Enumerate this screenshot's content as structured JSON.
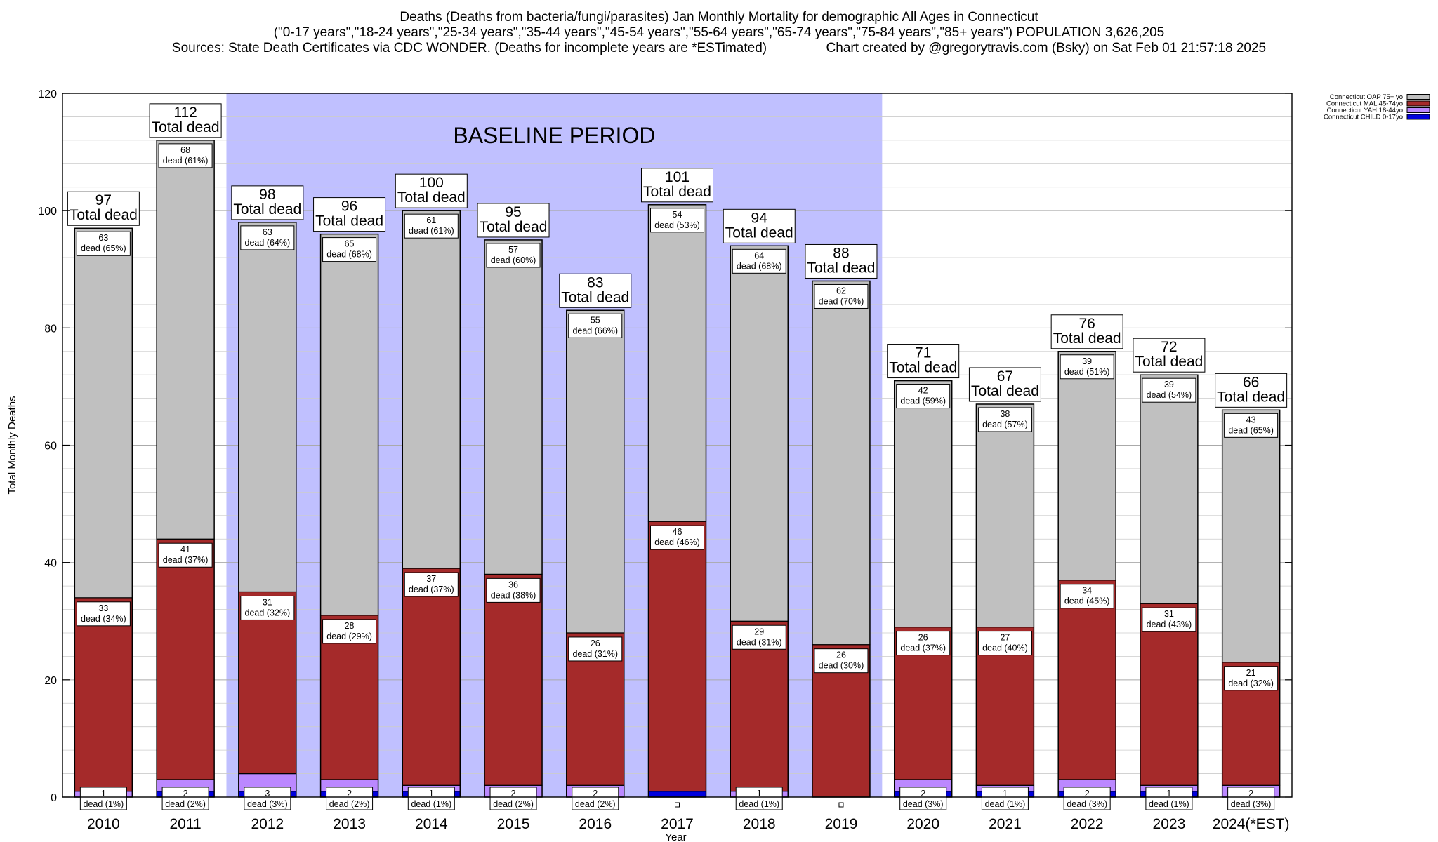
{
  "header": {
    "title_line1": "Deaths (Deaths from bacteria/fungi/parasites) Jan Monthly Mortality for demographic All Ages in Connecticut",
    "title_line2": "(\"0-17 years\",\"18-24 years\",\"25-34 years\",\"35-44 years\",\"45-54 years\",\"55-64 years\",\"65-74 years\",\"75-84 years\",\"85+ years\") POPULATION 3,626,205",
    "title_line3": "Sources: State Death Certificates via CDC WONDER. (Deaths for incomplete years are *ESTimated)                Chart created by @gregorytravis.com (Bsky) on Sat Feb 01 21:57:18 2025"
  },
  "chart_data": {
    "type": "bar",
    "stacked": true,
    "xlabel": "Year",
    "ylabel": "Total Monthly Deaths",
    "ylim": [
      0,
      120
    ],
    "yticks": [
      0,
      20,
      40,
      60,
      80,
      100,
      120
    ],
    "grid": true,
    "legend_position": "top-right",
    "categories": [
      "2010",
      "2011",
      "2012",
      "2013",
      "2014",
      "2015",
      "2016",
      "2017",
      "2018",
      "2019",
      "2020",
      "2021",
      "2022",
      "2023",
      "2024(*EST)"
    ],
    "series": [
      {
        "name": "Connecticut CHILD 0-17yo",
        "color": "#0000dd",
        "values": [
          0,
          1,
          1,
          1,
          1,
          0,
          0,
          1,
          0,
          0,
          1,
          1,
          1,
          1,
          0
        ],
        "labels": [
          "",
          "",
          "",
          "",
          "",
          "",
          "",
          "",
          "",
          "",
          "",
          "",
          "",
          "",
          ""
        ]
      },
      {
        "name": "Connecticut YAH 18-44yo",
        "color": "#bb88ff",
        "values": [
          1,
          2,
          3,
          2,
          1,
          2,
          2,
          0,
          1,
          0,
          2,
          1,
          2,
          1,
          2
        ],
        "labels": [
          "1\ndead (1%)",
          "2\ndead (2%)",
          "3\ndead (3%)",
          "2\ndead (2%)",
          "1\ndead (1%)",
          "2\ndead (2%)",
          "2\ndead (2%)",
          "",
          "1\ndead (1%)",
          "",
          "2\ndead (3%)",
          "1\ndead (1%)",
          "2\ndead (3%)",
          "1\ndead (1%)",
          "2\ndead (3%)"
        ]
      },
      {
        "name": "Connecticut MAL 45-74yo",
        "color": "#a52a2a",
        "values": [
          33,
          41,
          31,
          28,
          37,
          36,
          26,
          46,
          29,
          26,
          26,
          27,
          34,
          31,
          21
        ],
        "labels": [
          "33\ndead (34%)",
          "41\ndead (37%)",
          "31\ndead (32%)",
          "28\ndead (29%)",
          "37\ndead (37%)",
          "36\ndead (38%)",
          "26\ndead (31%)",
          "46\ndead (46%)",
          "29\ndead (31%)",
          "26\ndead (30%)",
          "26\ndead (37%)",
          "27\ndead (40%)",
          "34\ndead (45%)",
          "31\ndead (43%)",
          "21\ndead (32%)"
        ]
      },
      {
        "name": "Connecticut OAP 75+ yo",
        "color": "#c0c0c0",
        "values": [
          63,
          68,
          63,
          65,
          61,
          57,
          55,
          54,
          64,
          62,
          42,
          38,
          39,
          39,
          43
        ],
        "labels": [
          "63\ndead (65%)",
          "68\ndead (61%)",
          "63\ndead (64%)",
          "65\ndead (68%)",
          "61\ndead (61%)",
          "57\ndead (60%)",
          "55\ndead (66%)",
          "54\ndead (53%)",
          "64\ndead (68%)",
          "62\ndead (70%)",
          "42\ndead (59%)",
          "38\ndead (57%)",
          "39\ndead (51%)",
          "39\ndead (54%)",
          "43\ndead (65%)"
        ]
      }
    ],
    "totals": [
      97,
      112,
      98,
      96,
      100,
      95,
      83,
      101,
      94,
      88,
      71,
      67,
      76,
      72,
      66
    ],
    "total_suffix": "Total dead",
    "baseline": {
      "label": "BASELINE PERIOD",
      "from": "2012",
      "to": "2019",
      "color": "#c0c0ff"
    },
    "legend_order": [
      "Connecticut OAP 75+ yo",
      "Connecticut MAL 45-74yo",
      "Connecticut YAH 18-44yo",
      "Connecticut CHILD 0-17yo"
    ]
  }
}
